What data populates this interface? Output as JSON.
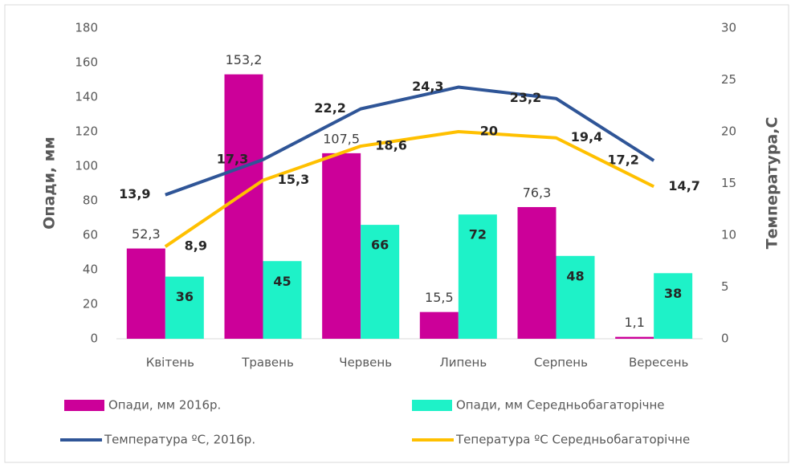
{
  "chart_data": {
    "type": "bar-line",
    "categories": [
      "Квітень",
      "Травень",
      "Червень",
      "Липень",
      "Серпень",
      "Вересень"
    ],
    "ylabel": "Опади, мм",
    "y2label": "Температура,С",
    "ylim": [
      0,
      180
    ],
    "yticks": [
      0,
      20,
      40,
      60,
      80,
      100,
      120,
      140,
      160,
      180
    ],
    "y2lim": [
      0,
      30
    ],
    "y2ticks": [
      0,
      5,
      10,
      15,
      20,
      25,
      30
    ],
    "grid": false,
    "series": [
      {
        "name": "Опади, мм 2016р.",
        "type": "bar",
        "color": "#cc0099",
        "values": [
          52.3,
          153.2,
          107.5,
          15.5,
          76.3,
          1.1
        ],
        "value_labels": [
          "52,3",
          "153,2",
          "107,5",
          "15,5",
          "76,3",
          "1,1"
        ]
      },
      {
        "name": "Опади, мм Середньобагаторічне",
        "type": "bar",
        "color": "#1ef2c8",
        "values": [
          36,
          45,
          66,
          72,
          48,
          38
        ]
      },
      {
        "name": "Температура ºС, 2016р.",
        "type": "line",
        "axis": "y2",
        "color": "#2f5597",
        "values": [
          13.9,
          17.3,
          22.2,
          24.3,
          23.2,
          17.2
        ],
        "value_labels": [
          "13,9",
          "17,3",
          "22,2",
          "24,3",
          "23,2",
          "17,2"
        ]
      },
      {
        "name": "Тепература ºС Середньобагаторічне",
        "type": "line",
        "axis": "y2",
        "color": "#ffc000",
        "values": [
          8.9,
          15.3,
          18.6,
          20,
          19.4,
          14.7
        ],
        "value_labels": [
          "8,9",
          "15,3",
          "18,6",
          "20",
          "19,4",
          "14,7"
        ]
      }
    ]
  }
}
